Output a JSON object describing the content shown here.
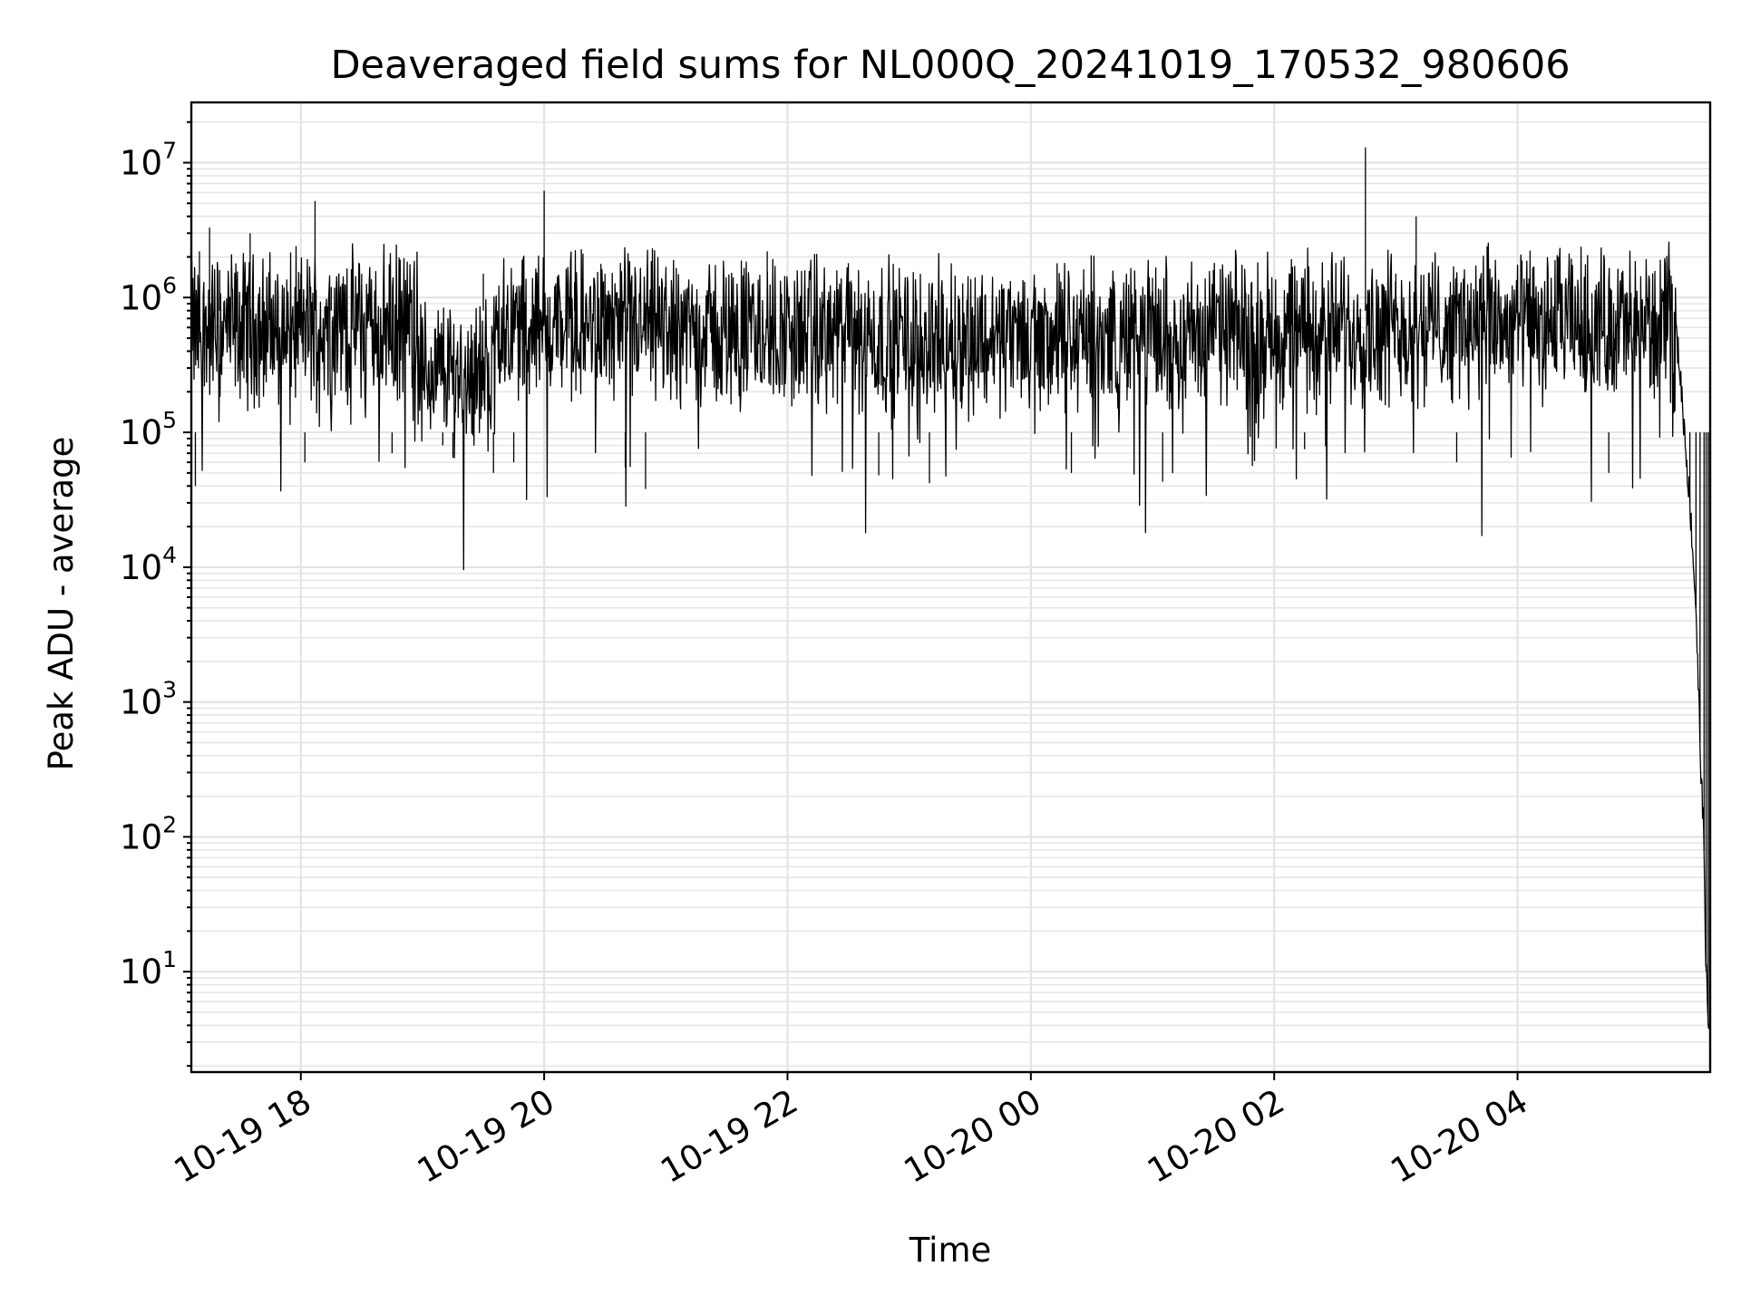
{
  "chart_data": {
    "type": "line",
    "title": "Deaveraged field sums for NL000Q_20241019_170532_980606",
    "xlabel": "Time",
    "ylabel": "Peak ADU - average",
    "yscale": "log",
    "ylim": [
      1.8,
      28000000
    ],
    "xlim": [
      "2024-10-19T17:06:00",
      "2024-10-20T05:35:00"
    ],
    "grid": "major and minor, both axes",
    "x_ticks": [
      {
        "t": "2024-10-19T18:00:00",
        "label": "10-19 18"
      },
      {
        "t": "2024-10-19T20:00:00",
        "label": "10-19 20"
      },
      {
        "t": "2024-10-19T22:00:00",
        "label": "10-19 22"
      },
      {
        "t": "2024-10-20T00:00:00",
        "label": "10-20 00"
      },
      {
        "t": "2024-10-20T02:00:00",
        "label": "10-20 02"
      },
      {
        "t": "2024-10-20T04:00:00",
        "label": "10-20 04"
      }
    ],
    "y_ticks": [
      {
        "value": 10,
        "base": "10",
        "exp": "1"
      },
      {
        "value": 100,
        "base": "10",
        "exp": "2"
      },
      {
        "value": 1000,
        "base": "10",
        "exp": "3"
      },
      {
        "value": 10000,
        "base": "10",
        "exp": "4"
      },
      {
        "value": 100000,
        "base": "10",
        "exp": "5"
      },
      {
        "value": 1000000,
        "base": "10",
        "exp": "6"
      },
      {
        "value": 10000000,
        "base": "10",
        "exp": "7"
      }
    ],
    "series": [
      {
        "color": "#000000",
        "points": [
          [
            "2024-10-19T17:06:00",
            200000
          ],
          [
            "2024-10-19T17:08:00",
            40000
          ],
          [
            "2024-10-19T17:10:00",
            2200000
          ],
          [
            "2024-10-19T17:15:00",
            3300000
          ],
          [
            "2024-10-19T17:20:00",
            1600000
          ],
          [
            "2024-10-19T17:30:00",
            400000
          ],
          [
            "2024-10-19T17:35:00",
            3000000
          ],
          [
            "2024-10-19T17:45:00",
            500000
          ],
          [
            "2024-10-19T17:50:00",
            80000
          ],
          [
            "2024-10-19T18:00:00",
            1500000
          ],
          [
            "2024-10-19T18:02:00",
            60000
          ],
          [
            "2024-10-19T18:07:00",
            5200000
          ],
          [
            "2024-10-19T18:15:00",
            1200000
          ],
          [
            "2024-10-19T18:30:00",
            1500000
          ],
          [
            "2024-10-19T18:45:00",
            70000
          ],
          [
            "2024-10-19T19:00:00",
            600000
          ],
          [
            "2024-10-19T19:10:00",
            80000
          ],
          [
            "2024-10-19T19:15:00",
            65000
          ],
          [
            "2024-10-19T19:30:00",
            1500000
          ],
          [
            "2024-10-19T19:35:00",
            50000
          ],
          [
            "2024-10-19T19:45:00",
            60000
          ],
          [
            "2024-10-19T19:55:00",
            800000
          ],
          [
            "2024-10-19T20:00:00",
            6200000
          ],
          [
            "2024-10-19T20:15:00",
            1300000
          ],
          [
            "2024-10-19T20:30:00",
            1500000
          ],
          [
            "2024-10-19T20:40:00",
            55000
          ],
          [
            "2024-10-19T20:50:00",
            38000
          ],
          [
            "2024-10-19T21:00:00",
            1500000
          ],
          [
            "2024-10-19T21:30:00",
            600000
          ],
          [
            "2024-10-19T21:50:00",
            2200000
          ],
          [
            "2024-10-19T22:00:00",
            700000
          ],
          [
            "2024-10-19T22:30:00",
            1800000
          ],
          [
            "2024-10-19T22:45:00",
            48000
          ],
          [
            "2024-10-19T23:00:00",
            600000
          ],
          [
            "2024-10-19T23:10:00",
            42000
          ],
          [
            "2024-10-19T23:30:00",
            700000
          ],
          [
            "2024-10-20T00:00:00",
            500000
          ],
          [
            "2024-10-20T00:20:00",
            50000
          ],
          [
            "2024-10-20T00:30:00",
            600000
          ],
          [
            "2024-10-20T01:00:00",
            1400000
          ],
          [
            "2024-10-20T01:05:00",
            43000
          ],
          [
            "2024-10-20T01:30:00",
            1600000
          ],
          [
            "2024-10-20T02:00:00",
            700000
          ],
          [
            "2024-10-20T02:15:00",
            75000
          ],
          [
            "2024-10-20T02:45:00",
            13000000
          ],
          [
            "2024-10-20T03:00:00",
            1500000
          ],
          [
            "2024-10-20T03:10:00",
            4000000
          ],
          [
            "2024-10-20T03:30:00",
            60000
          ],
          [
            "2024-10-20T03:45:00",
            2400000
          ],
          [
            "2024-10-20T04:00:00",
            500000
          ],
          [
            "2024-10-20T04:20:00",
            2000000
          ],
          [
            "2024-10-20T04:45:00",
            50000
          ],
          [
            "2024-10-20T05:00:00",
            600000
          ],
          [
            "2024-10-20T05:15:00",
            1600000
          ],
          [
            "2024-10-20T05:20:00",
            300000
          ],
          [
            "2024-10-20T05:25:00",
            30000
          ],
          [
            "2024-10-20T05:28:00",
            5000
          ],
          [
            "2024-10-20T05:30:00",
            500
          ],
          [
            "2024-10-20T05:32:00",
            80
          ],
          [
            "2024-10-20T05:33:00",
            10
          ],
          [
            "2024-10-20T05:34:00",
            4
          ]
        ]
      }
    ]
  }
}
